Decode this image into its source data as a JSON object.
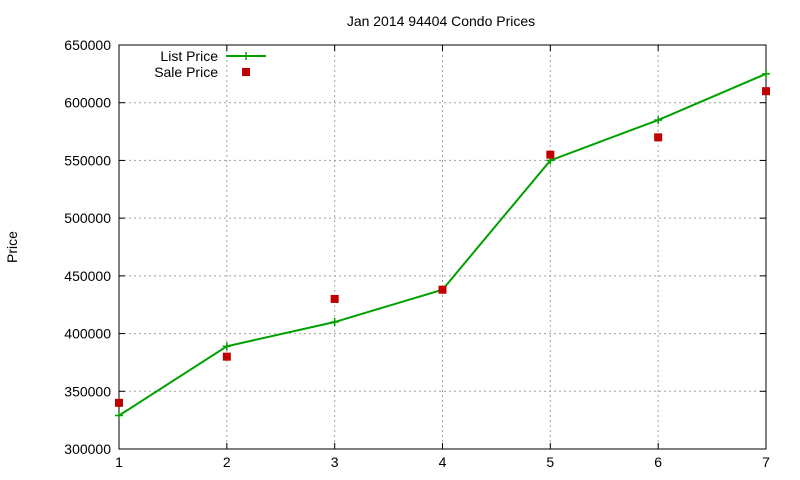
{
  "chart_data": {
    "type": "line",
    "title": "Jan 2014 94404 Condo Prices",
    "xlabel": "",
    "ylabel": "Price",
    "x": [
      1,
      2,
      3,
      4,
      5,
      6,
      7
    ],
    "xlim": [
      1,
      7
    ],
    "ylim": [
      300000,
      650000
    ],
    "xticks": [
      1,
      2,
      3,
      4,
      5,
      6,
      7
    ],
    "yticks": [
      300000,
      350000,
      400000,
      450000,
      500000,
      550000,
      600000,
      650000
    ],
    "grid": true,
    "legend_position": "top-left",
    "series": [
      {
        "name": "List Price",
        "style": "line+marker",
        "marker": "plus",
        "color": "#00a000",
        "values": [
          329000,
          389000,
          410000,
          438000,
          550000,
          585000,
          625000
        ]
      },
      {
        "name": "Sale Price",
        "style": "marker",
        "marker": "square",
        "color": "#c00000",
        "values": [
          340000,
          380000,
          430000,
          438000,
          555000,
          570000,
          610000
        ]
      }
    ]
  }
}
